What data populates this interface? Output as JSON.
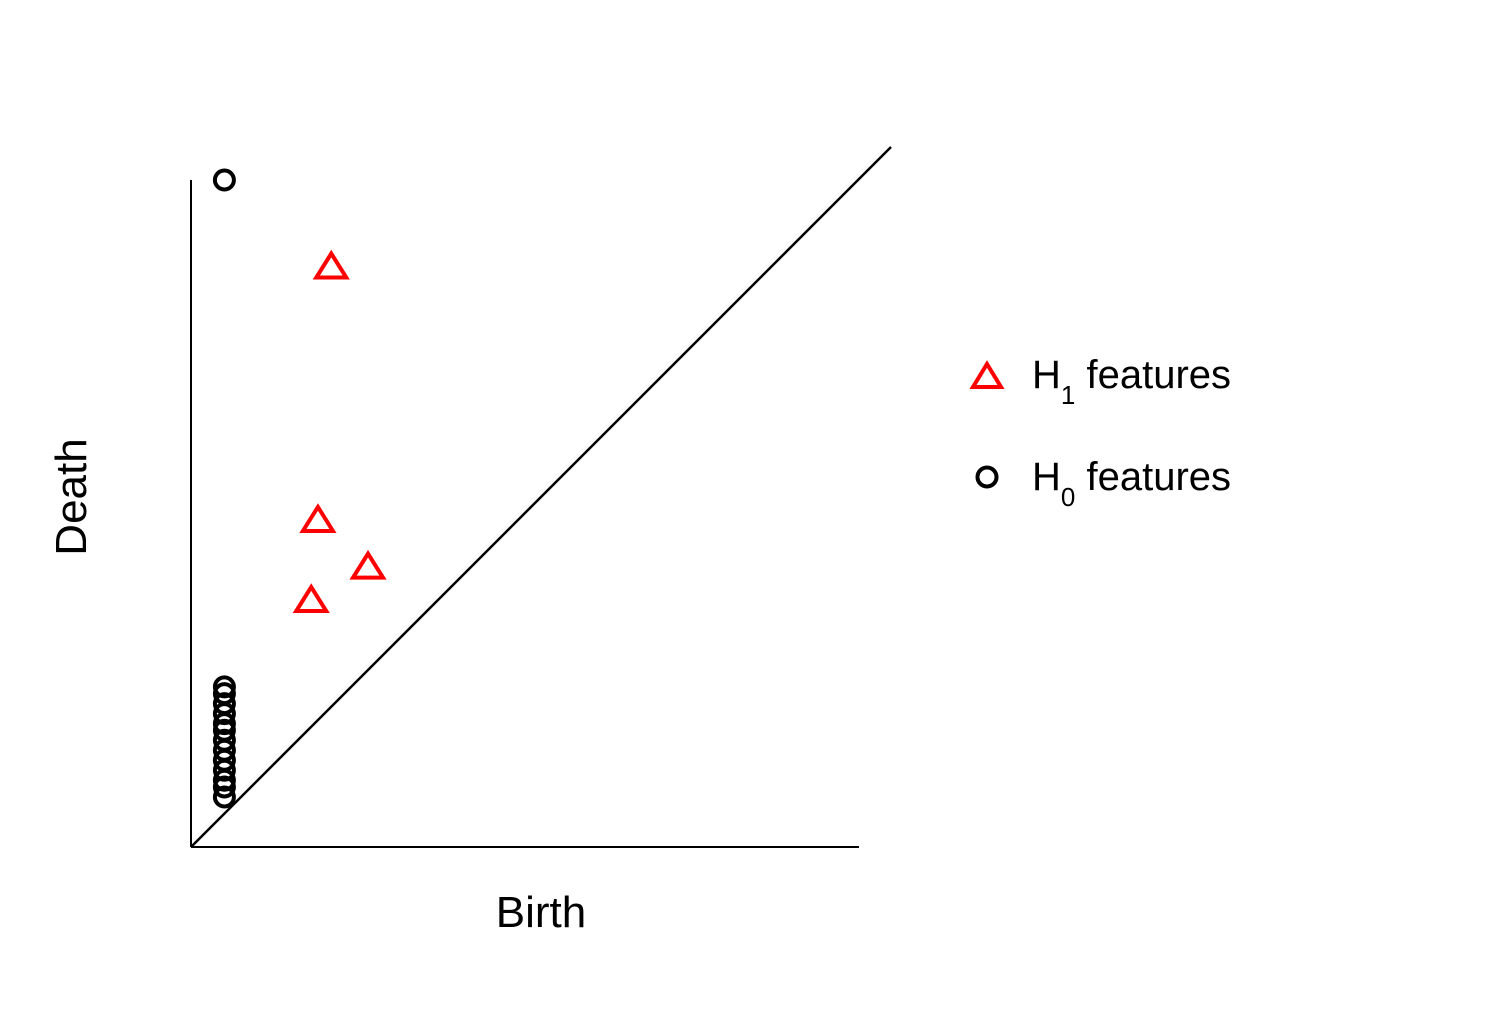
{
  "chart_data": {
    "type": "scatter",
    "title": "",
    "xlabel": "Birth",
    "ylabel": "Death",
    "xlim": [
      0,
      1
    ],
    "ylim": [
      0,
      1
    ],
    "grid": false,
    "diagonal": true,
    "legend_position": "right",
    "series": [
      {
        "name_main": "H",
        "name_sub": "1",
        "name_rest": " features",
        "marker": "triangle",
        "color": "#ff0000",
        "points": [
          {
            "x": 0.21,
            "y": 0.87
          },
          {
            "x": 0.19,
            "y": 0.49
          },
          {
            "x": 0.265,
            "y": 0.42
          },
          {
            "x": 0.18,
            "y": 0.37
          }
        ]
      },
      {
        "name_main": "H",
        "name_sub": "0",
        "name_rest": " features",
        "marker": "circle",
        "color": "#000000",
        "points": [
          {
            "x": 0.05,
            "y": 1.0
          },
          {
            "x": 0.05,
            "y": 0.24
          },
          {
            "x": 0.05,
            "y": 0.23
          },
          {
            "x": 0.05,
            "y": 0.215
          },
          {
            "x": 0.05,
            "y": 0.2
          },
          {
            "x": 0.05,
            "y": 0.185
          },
          {
            "x": 0.05,
            "y": 0.175
          },
          {
            "x": 0.05,
            "y": 0.16
          },
          {
            "x": 0.05,
            "y": 0.145
          },
          {
            "x": 0.05,
            "y": 0.13
          },
          {
            "x": 0.05,
            "y": 0.115
          },
          {
            "x": 0.05,
            "y": 0.1
          },
          {
            "x": 0.05,
            "y": 0.09
          },
          {
            "x": 0.05,
            "y": 0.075
          }
        ]
      }
    ]
  }
}
